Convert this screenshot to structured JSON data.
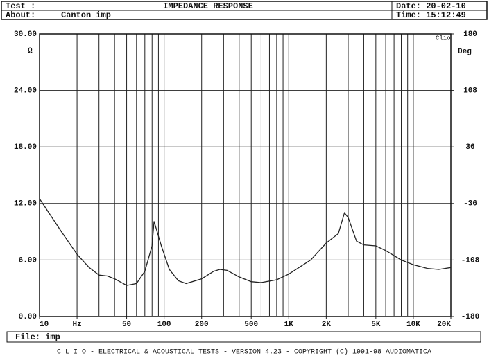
{
  "header": {
    "test_label": "Test :",
    "date": "Date: 20-02-10",
    "about_label": "About:",
    "about": "Canton imp",
    "time": "Time: 15:12:49"
  },
  "footer": {
    "file": "File: imp",
    "credits": "C L I O  -  ELECTRICAL & ACOUSTICAL TESTS  -  VERSION 4.23  -  COPYRIGHT (C) 1991-98 AUDIOMATICA"
  },
  "chart_data": {
    "type": "line",
    "title": "IMPEDANCE RESPONSE",
    "annotation": "Clio",
    "ylabel": "Ω",
    "y2label": "Deg",
    "color": "#222222",
    "xscale": "log",
    "grid": true,
    "x": [
      10,
      15,
      20,
      25,
      30,
      35,
      40,
      50,
      60,
      70,
      80,
      83,
      95,
      110,
      130,
      150,
      200,
      250,
      280,
      320,
      400,
      500,
      600,
      800,
      1000,
      1500,
      2000,
      2500,
      2800,
      3000,
      3500,
      4000,
      5000,
      6000,
      8000,
      10000,
      13000,
      16000,
      20000
    ],
    "values": [
      12.5,
      9.0,
      6.6,
      5.2,
      4.4,
      4.3,
      4.0,
      3.3,
      3.5,
      4.8,
      7.5,
      10.1,
      7.5,
      5.0,
      3.8,
      3.5,
      4.0,
      4.8,
      5.0,
      4.9,
      4.2,
      3.7,
      3.6,
      3.9,
      4.5,
      6.0,
      7.8,
      8.8,
      11.0,
      10.5,
      8.0,
      7.6,
      7.5,
      7.0,
      6.0,
      5.5,
      5.1,
      5.0,
      5.2
    ],
    "xlim": [
      10,
      20000
    ],
    "xticks": [
      10,
      {
        "value": 20,
        "label": "Hz"
      },
      50,
      100,
      200,
      500,
      {
        "value": 1000,
        "label": "1K"
      },
      {
        "value": 2000,
        "label": "2K"
      },
      {
        "value": 5000,
        "label": "5K"
      },
      {
        "value": 10000,
        "label": "10K"
      },
      {
        "value": 20000,
        "label": "20K"
      }
    ],
    "xgrid": [
      20,
      30,
      40,
      50,
      60,
      70,
      80,
      90,
      100,
      200,
      300,
      400,
      500,
      600,
      700,
      800,
      900,
      1000,
      2000,
      3000,
      4000,
      5000,
      6000,
      7000,
      8000,
      9000,
      10000
    ],
    "ylim": [
      0,
      30
    ],
    "yticks": [
      {
        "value": 0,
        "label": "0.00"
      },
      {
        "value": 6,
        "label": "6.00"
      },
      {
        "value": 12,
        "label": "12.00"
      },
      {
        "value": 18,
        "label": "18.00"
      },
      {
        "value": 24,
        "label": "24.00"
      },
      {
        "value": 30,
        "label": "30.00"
      }
    ],
    "y2lim": [
      -180,
      180
    ],
    "y2ticks": [
      -180,
      -108,
      -36,
      36,
      108,
      180
    ]
  }
}
